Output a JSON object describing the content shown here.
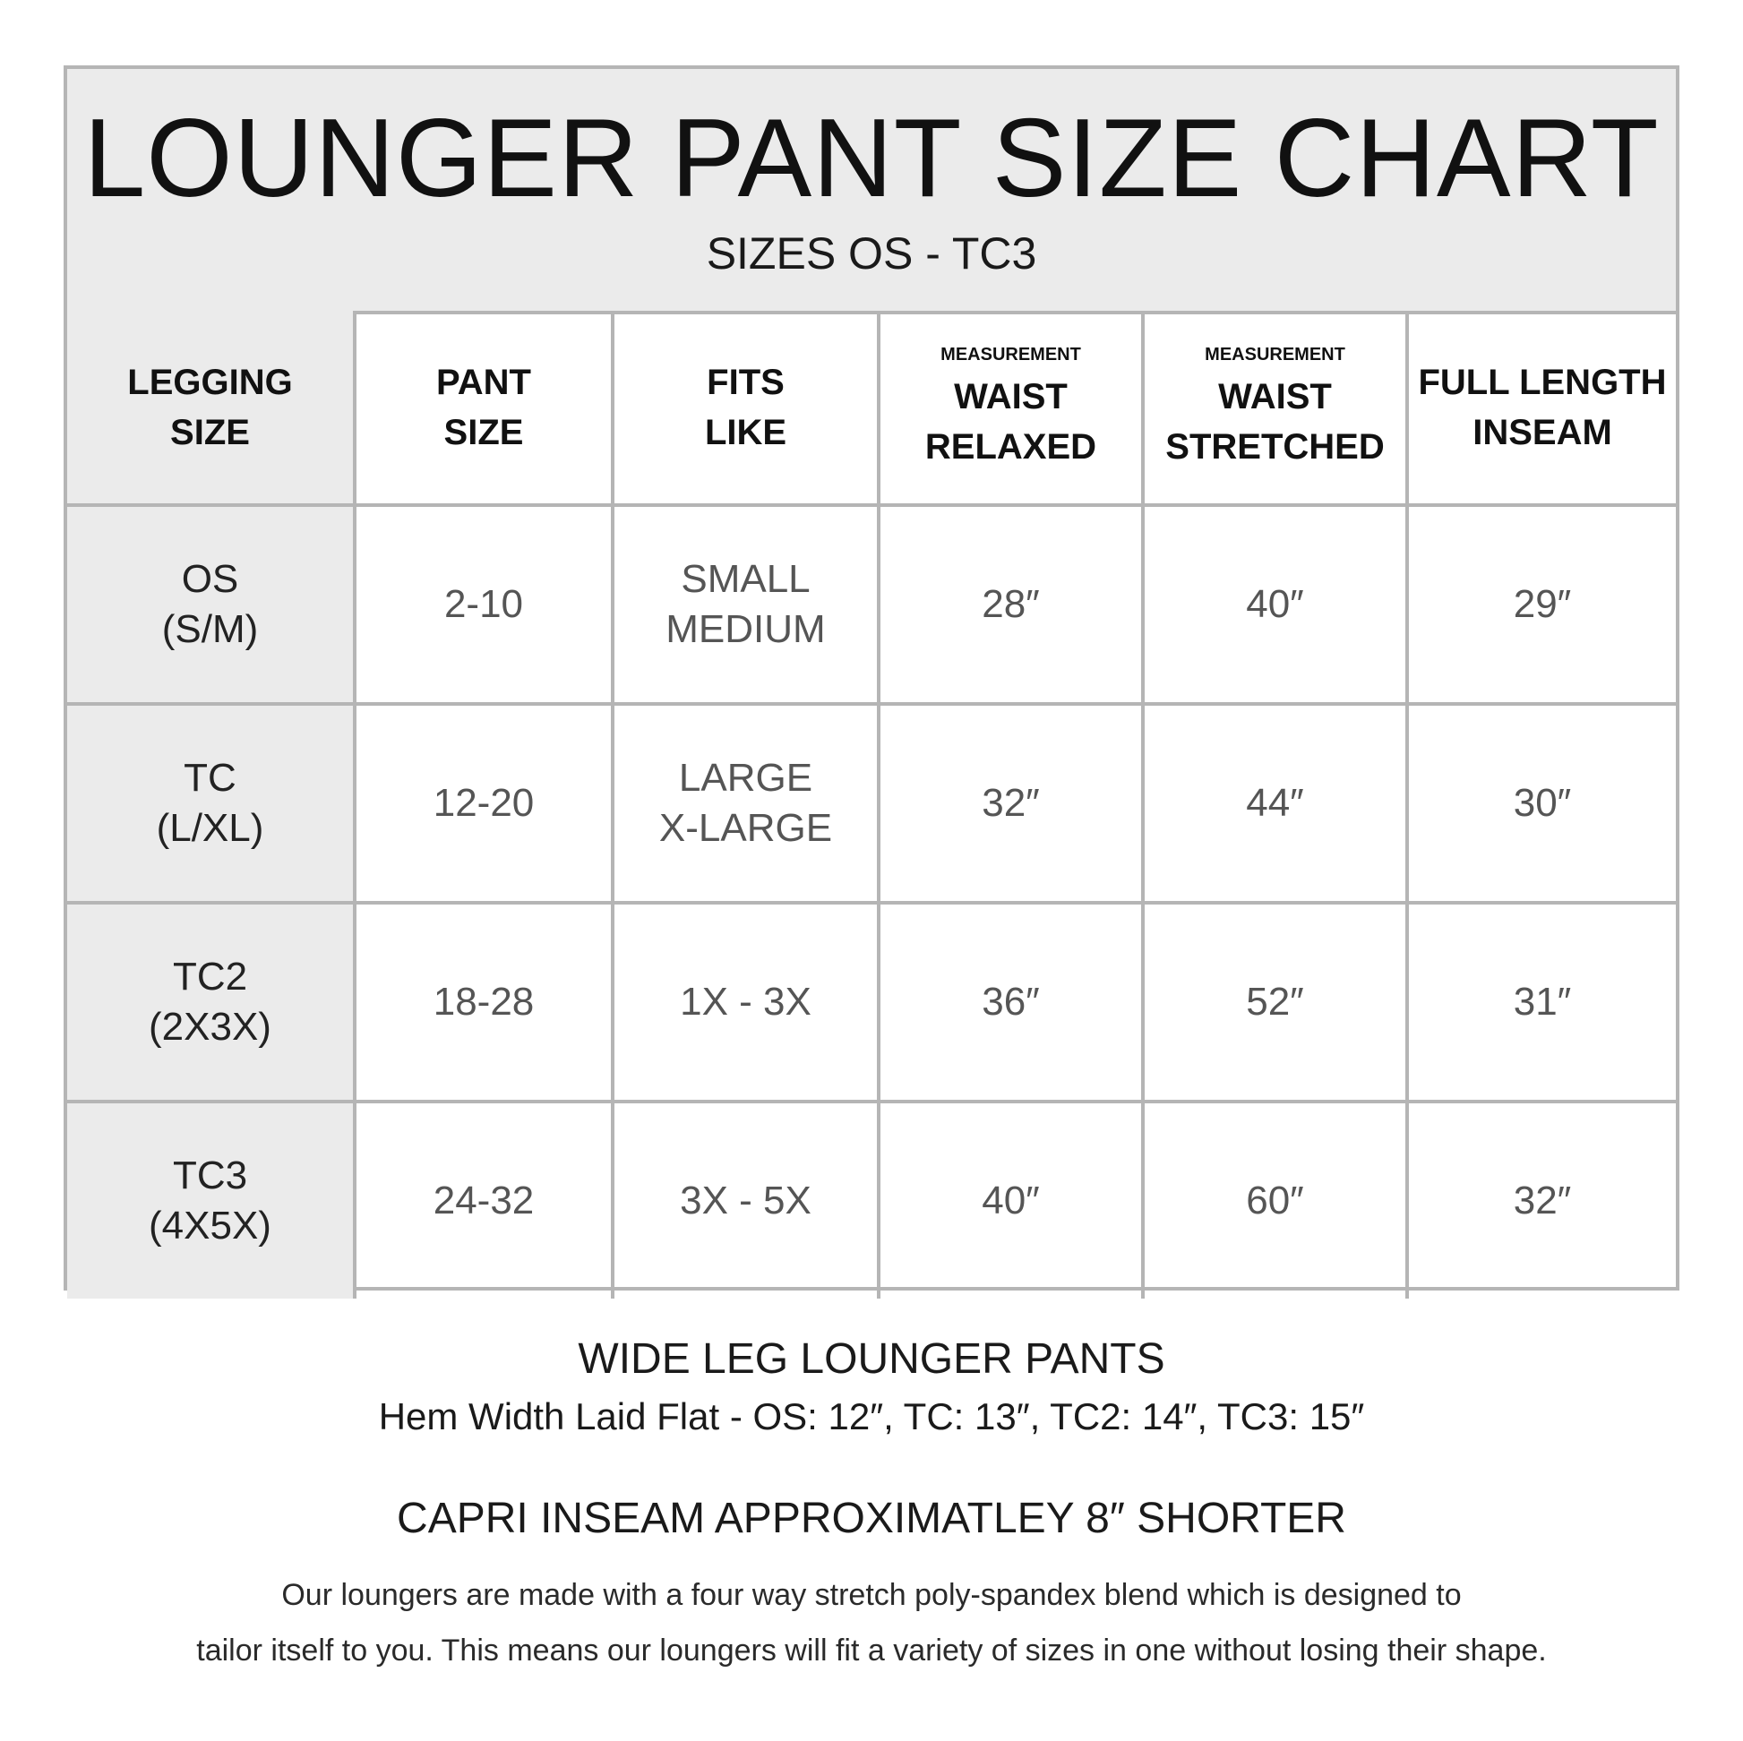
{
  "title": "LOUNGER PANT SIZE CHART",
  "subtitle": "SIZES OS - TC3",
  "headers": [
    {
      "small": "",
      "main": [
        "LEGGING",
        "SIZE"
      ]
    },
    {
      "small": "",
      "main": [
        "PANT",
        "SIZE"
      ]
    },
    {
      "small": "",
      "main": [
        "FITS",
        "LIKE"
      ]
    },
    {
      "small": "MEASUREMENT",
      "main": [
        "WAIST",
        "RELAXED"
      ]
    },
    {
      "small": "MEASUREMENT",
      "main": [
        "WAIST",
        "STRETCHED"
      ]
    },
    {
      "small": "",
      "main": [
        "FULL LENGTH",
        "INSEAM"
      ]
    }
  ],
  "rows": [
    {
      "legging": [
        "OS",
        "(S/M)"
      ],
      "pant": "2-10",
      "fits": [
        "SMALL",
        "MEDIUM"
      ],
      "waist_relaxed": "28″",
      "waist_stretched": "40″",
      "inseam": "29″"
    },
    {
      "legging": [
        "TC",
        "(L/XL)"
      ],
      "pant": "12-20",
      "fits": [
        "LARGE",
        "X-LARGE"
      ],
      "waist_relaxed": "32″",
      "waist_stretched": "44″",
      "inseam": "30″"
    },
    {
      "legging": [
        "TC2",
        "(2X3X)"
      ],
      "pant": "18-28",
      "fits": [
        "1X - 3X",
        ""
      ],
      "waist_relaxed": "36″",
      "waist_stretched": "52″",
      "inseam": "31″"
    },
    {
      "legging": [
        "TC3",
        "(4X5X)"
      ],
      "pant": "24-32",
      "fits": [
        "3X - 5X",
        ""
      ],
      "waist_relaxed": "40″",
      "waist_stretched": "60″",
      "inseam": "32″"
    }
  ],
  "footer": {
    "wide_leg_title": "WIDE LEG LOUNGER PANTS",
    "hem_width": "Hem Width Laid Flat - OS: 12″,  TC: 13″,  TC2: 14″,  TC3: 15″",
    "capri": "CAPRI INSEAM APPROXIMATLEY 8″ SHORTER",
    "description": [
      "Our loungers are made with a four way stretch poly-spandex blend which is designed to",
      "tailor itself to you. This means our loungers will fit a variety of sizes in one without losing their shape."
    ]
  },
  "colors": {
    "border": "#b5b5b5",
    "shade": "#ebebeb",
    "value_text": "#555555"
  }
}
